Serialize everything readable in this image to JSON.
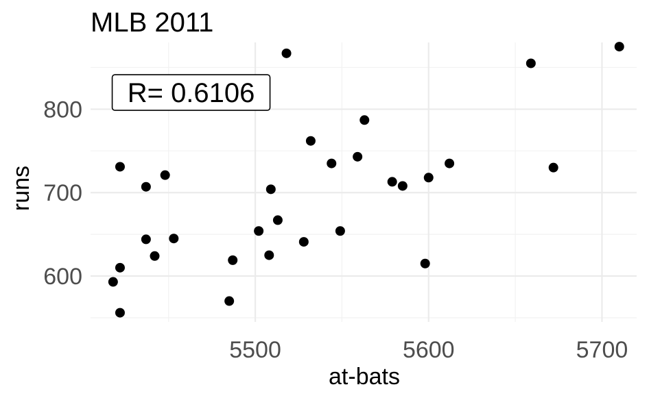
{
  "chart_data": {
    "type": "scatter",
    "title": "MLB 2011",
    "xlabel": "at-bats",
    "ylabel": "runs",
    "xlim": [
      5405,
      5720
    ],
    "ylim": [
      545,
      880
    ],
    "x_ticks": [
      5500,
      5600,
      5700
    ],
    "y_ticks": [
      600,
      700,
      800
    ],
    "annotation": {
      "text": "R= 0.6106",
      "x": 5463,
      "y": 820
    },
    "grid": true,
    "legend": "none",
    "points": [
      {
        "x": 5418,
        "y": 593
      },
      {
        "x": 5422,
        "y": 610
      },
      {
        "x": 5422,
        "y": 556
      },
      {
        "x": 5422,
        "y": 731
      },
      {
        "x": 5437,
        "y": 707
      },
      {
        "x": 5437,
        "y": 644
      },
      {
        "x": 5442,
        "y": 624
      },
      {
        "x": 5448,
        "y": 721
      },
      {
        "x": 5453,
        "y": 645
      },
      {
        "x": 5485,
        "y": 570
      },
      {
        "x": 5487,
        "y": 619
      },
      {
        "x": 5502,
        "y": 654
      },
      {
        "x": 5508,
        "y": 625
      },
      {
        "x": 5509,
        "y": 704
      },
      {
        "x": 5513,
        "y": 667
      },
      {
        "x": 5518,
        "y": 867
      },
      {
        "x": 5528,
        "y": 641
      },
      {
        "x": 5532,
        "y": 762
      },
      {
        "x": 5544,
        "y": 735
      },
      {
        "x": 5549,
        "y": 654
      },
      {
        "x": 5559,
        "y": 743
      },
      {
        "x": 5563,
        "y": 787
      },
      {
        "x": 5579,
        "y": 713
      },
      {
        "x": 5585,
        "y": 708
      },
      {
        "x": 5598,
        "y": 615
      },
      {
        "x": 5600,
        "y": 718
      },
      {
        "x": 5612,
        "y": 735
      },
      {
        "x": 5659,
        "y": 855
      },
      {
        "x": 5672,
        "y": 730
      },
      {
        "x": 5710,
        "y": 875
      }
    ]
  }
}
